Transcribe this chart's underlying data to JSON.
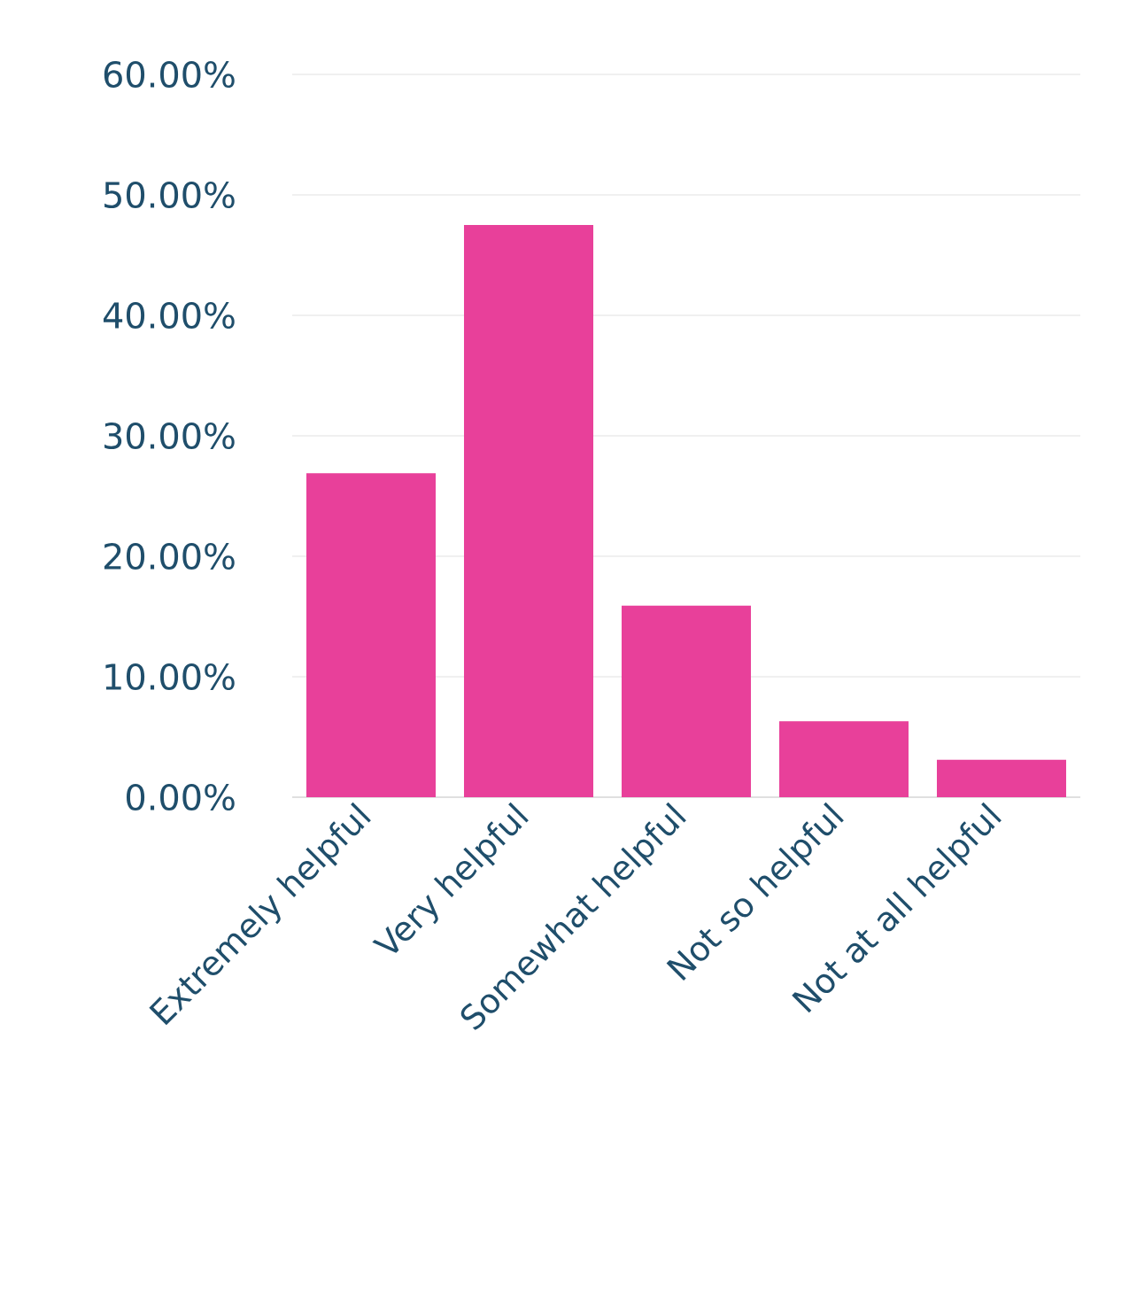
{
  "chart_data": {
    "type": "bar",
    "categories": [
      "Extremely helpful",
      "Very helpful",
      "Somewhat helpful",
      "Not so helpful",
      "Not at all helpful"
    ],
    "values": [
      26.9,
      47.5,
      15.9,
      6.3,
      3.1
    ],
    "color": "#e8409a",
    "ylim": [
      0,
      60
    ],
    "yticks": [
      {
        "value": 0,
        "label": "0.00%"
      },
      {
        "value": 10,
        "label": "10.00%"
      },
      {
        "value": 20,
        "label": "20.00%"
      },
      {
        "value": 30,
        "label": "30.00%"
      },
      {
        "value": 40,
        "label": "40.00%"
      },
      {
        "value": 50,
        "label": "50.00%"
      },
      {
        "value": 60,
        "label": "60.00%"
      }
    ],
    "grid": "y"
  }
}
